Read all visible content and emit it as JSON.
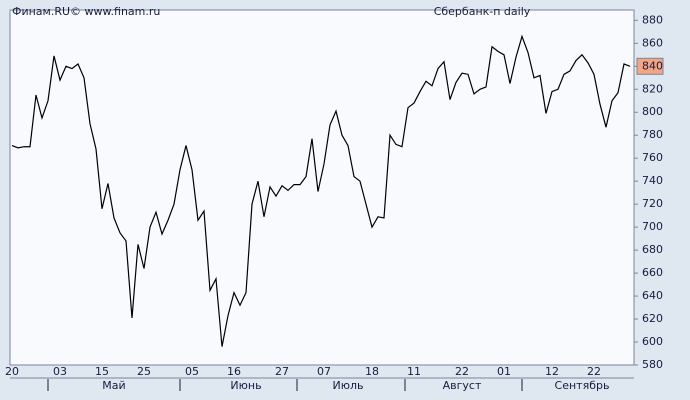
{
  "header": {
    "source": "Финам.RU©  www.finam.ru"
  },
  "chart_data": {
    "type": "line",
    "title": "Сбербанк-п daily",
    "color": "#000000",
    "categories": [
      "20",
      null,
      null,
      null,
      null,
      null,
      null,
      null,
      "03",
      null,
      null,
      null,
      null,
      null,
      null,
      "15",
      null,
      null,
      null,
      null,
      null,
      null,
      "25",
      null,
      null,
      null,
      null,
      null,
      null,
      null,
      "05",
      null,
      null,
      null,
      null,
      null,
      null,
      "16",
      null,
      null,
      null,
      null,
      null,
      null,
      null,
      "27",
      null,
      null,
      null,
      null,
      null,
      null,
      "07",
      null,
      null,
      null,
      null,
      null,
      null,
      null,
      "18",
      null,
      null,
      null,
      null,
      null,
      null,
      "11",
      null,
      null,
      null,
      null,
      null,
      null,
      null,
      "22",
      null,
      null,
      null,
      null,
      null,
      null,
      "01",
      null,
      null,
      null,
      null,
      null,
      null,
      null,
      "12",
      null,
      null,
      null,
      null,
      null,
      null,
      "22",
      null,
      null,
      null,
      null,
      null,
      null
    ],
    "months": [
      null,
      null,
      null,
      null,
      null,
      null,
      null,
      null,
      null,
      null,
      null,
      null,
      null,
      null,
      null,
      null,
      null,
      "Май",
      null,
      null,
      null,
      null,
      null,
      null,
      null,
      null,
      null,
      null,
      null,
      null,
      null,
      null,
      null,
      null,
      null,
      null,
      null,
      null,
      null,
      "Июнь",
      null,
      null,
      null,
      null,
      null,
      null,
      null,
      null,
      null,
      null,
      null,
      null,
      null,
      null,
      null,
      null,
      "Июль",
      null,
      null,
      null,
      null,
      null,
      null,
      null,
      null,
      null,
      null,
      null,
      null,
      null,
      null,
      null,
      null,
      null,
      null,
      "Август",
      null,
      null,
      null,
      null,
      null,
      null,
      null,
      null,
      null,
      null,
      null,
      null,
      null,
      null,
      null,
      null,
      null,
      null,
      null,
      "Сентябрь",
      null,
      null,
      null,
      null,
      null,
      null,
      null,
      null
    ],
    "values": [
      771,
      769,
      770,
      770,
      815,
      795,
      810,
      849,
      828,
      840,
      838,
      842,
      830,
      790,
      768,
      716,
      738,
      708,
      695,
      688,
      621,
      685,
      664,
      700,
      713,
      694,
      706,
      720,
      750,
      771,
      750,
      706,
      714,
      645,
      655,
      596,
      623,
      643,
      632,
      643,
      720,
      740,
      709,
      735,
      727,
      736,
      732,
      737,
      737,
      744,
      777,
      731,
      755,
      789,
      801,
      780,
      771,
      744,
      740,
      720,
      700,
      709,
      708,
      780,
      772,
      770,
      804,
      808,
      818,
      827,
      823,
      838,
      844,
      811,
      826,
      834,
      833,
      816,
      820,
      822,
      857,
      853,
      850,
      825,
      848,
      866,
      852,
      830,
      832,
      799,
      818,
      820,
      833,
      836,
      845,
      850,
      843,
      833,
      807,
      787,
      810,
      817,
      842,
      840
    ],
    "ylim": [
      580,
      889
    ],
    "yticks": [
      580,
      600,
      620,
      640,
      660,
      680,
      700,
      720,
      740,
      760,
      780,
      800,
      820,
      840,
      860,
      880
    ],
    "highlight_color": "#f4a582"
  }
}
